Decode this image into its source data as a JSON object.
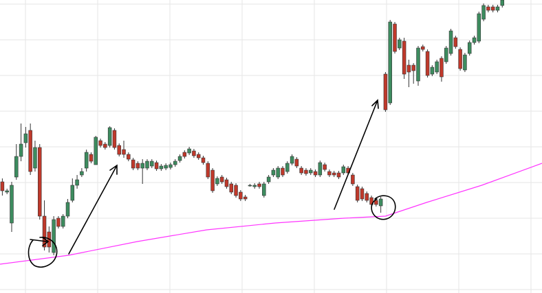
{
  "chart_data": {
    "type": "candlestick",
    "xlim": [
      -0.5,
      115.5
    ],
    "ylim": [
      0,
      427
    ],
    "yticks": [
      5,
      57,
      109,
      161,
      213,
      265,
      317,
      369,
      421
    ],
    "grid": true,
    "colors": {
      "up": "#3d8c5f",
      "down": "#c0392b",
      "wick": "#333333"
    },
    "candles": [
      [
        162,
        167,
        142,
        149
      ],
      [
        147,
        152,
        144,
        149
      ],
      [
        102,
        162,
        89,
        157
      ],
      [
        169,
        217,
        165,
        199
      ],
      [
        199,
        247,
        192,
        217
      ],
      [
        219,
        242,
        212,
        232
      ],
      [
        237,
        247,
        172,
        177
      ],
      [
        182,
        222,
        177,
        212
      ],
      [
        212,
        217,
        107,
        112
      ],
      [
        112,
        135,
        62,
        67
      ],
      [
        89,
        97,
        59,
        67
      ],
      [
        59,
        112,
        55,
        107
      ],
      [
        109,
        112,
        94,
        97
      ],
      [
        97,
        115,
        94,
        112
      ],
      [
        112,
        137,
        109,
        132
      ],
      [
        135,
        167,
        132,
        157
      ],
      [
        157,
        172,
        152,
        165
      ],
      [
        172,
        182,
        169,
        177
      ],
      [
        182,
        209,
        177,
        205
      ],
      [
        202,
        205,
        189,
        192
      ],
      [
        187,
        229,
        187,
        227
      ],
      [
        222,
        225,
        212,
        215
      ],
      [
        217,
        220,
        209,
        212
      ],
      [
        215,
        243,
        212,
        241
      ],
      [
        237,
        240,
        209,
        212
      ],
      [
        215,
        218,
        199,
        202
      ],
      [
        209,
        222,
        197,
        202
      ],
      [
        202,
        205,
        192,
        195
      ],
      [
        194,
        197,
        179,
        182
      ],
      [
        189,
        192,
        179,
        182
      ],
      [
        182,
        195,
        159,
        189
      ],
      [
        182,
        195,
        179,
        192
      ],
      [
        185,
        195,
        182,
        192
      ],
      [
        190,
        193,
        178,
        181
      ],
      [
        181,
        188,
        178,
        185
      ],
      [
        182,
        189,
        179,
        186
      ],
      [
        183,
        190,
        180,
        187
      ],
      [
        187,
        195,
        184,
        192
      ],
      [
        193,
        202,
        190,
        199
      ],
      [
        205,
        208,
        196,
        199
      ],
      [
        204,
        213,
        201,
        210
      ],
      [
        207,
        210,
        197,
        200
      ],
      [
        202,
        205,
        194,
        197
      ],
      [
        197,
        200,
        187,
        190
      ],
      [
        189,
        192,
        166,
        169
      ],
      [
        179,
        182,
        146,
        149
      ],
      [
        159,
        170,
        156,
        167
      ],
      [
        169,
        172,
        159,
        162
      ],
      [
        165,
        168,
        152,
        155
      ],
      [
        159,
        162,
        144,
        147
      ],
      [
        157,
        160,
        139,
        142
      ],
      [
        147,
        150,
        134,
        137
      ],
      [
        140,
        143,
        134,
        137
      ],
      [
        157,
        159,
        155,
        157
      ],
      [
        155,
        160,
        152,
        157
      ],
      [
        159,
        162,
        152,
        155
      ],
      [
        142,
        162,
        139,
        159
      ],
      [
        162,
        172,
        159,
        169
      ],
      [
        172,
        182,
        169,
        179
      ],
      [
        169,
        185,
        166,
        182
      ],
      [
        182,
        185,
        169,
        172
      ],
      [
        177,
        192,
        174,
        189
      ],
      [
        189,
        202,
        186,
        199
      ],
      [
        195,
        198,
        182,
        185
      ],
      [
        182,
        185,
        172,
        175
      ],
      [
        179,
        182,
        171,
        174
      ],
      [
        175,
        182,
        172,
        179
      ],
      [
        177,
        180,
        169,
        172
      ],
      [
        172,
        193,
        169,
        190
      ],
      [
        187,
        190,
        177,
        180
      ],
      [
        177,
        180,
        169,
        172
      ],
      [
        175,
        178,
        169,
        172
      ],
      [
        175,
        178,
        166,
        169
      ],
      [
        175,
        187,
        172,
        184
      ],
      [
        182,
        185,
        172,
        175
      ],
      [
        172,
        175,
        156,
        159
      ],
      [
        155,
        158,
        132,
        135
      ],
      [
        152,
        155,
        134,
        137
      ],
      [
        145,
        148,
        132,
        135
      ],
      [
        139,
        142,
        126,
        129
      ],
      [
        135,
        138,
        126,
        129
      ],
      [
        127,
        140,
        117,
        137
      ],
      [
        319,
        322,
        264,
        267
      ],
      [
        277,
        398,
        274,
        395
      ],
      [
        392,
        395,
        349,
        352
      ],
      [
        357,
        372,
        354,
        369
      ],
      [
        367,
        372,
        312,
        319
      ],
      [
        332,
        340,
        300,
        322
      ],
      [
        332,
        335,
        305,
        324
      ],
      [
        309,
        360,
        302,
        357
      ],
      [
        359,
        362,
        352,
        355
      ],
      [
        352,
        355,
        314,
        317
      ],
      [
        319,
        332,
        316,
        329
      ],
      [
        322,
        340,
        319,
        337
      ],
      [
        342,
        345,
        308,
        315
      ],
      [
        337,
        360,
        334,
        357
      ],
      [
        349,
        385,
        346,
        382
      ],
      [
        372,
        375,
        356,
        359
      ],
      [
        355,
        358,
        324,
        327
      ],
      [
        325,
        350,
        322,
        347
      ],
      [
        349,
        368,
        346,
        365
      ],
      [
        365,
        375,
        362,
        372
      ],
      [
        367,
        410,
        364,
        407
      ],
      [
        399,
        422,
        396,
        419
      ],
      [
        417,
        420,
        409,
        412
      ],
      [
        417,
        420,
        409,
        412
      ],
      [
        412,
        420,
        409,
        417
      ],
      [
        419,
        427,
        416,
        427
      ]
    ],
    "moving_average": {
      "color": "#ff33ff",
      "x": [
        -0.5,
        14.2,
        28.9,
        43.7,
        58.4,
        73.1,
        82,
        90.8,
        102.6,
        115.5
      ],
      "values": [
        42,
        55,
        75,
        92,
        102,
        109,
        112,
        132,
        157,
        189
      ]
    }
  }
}
